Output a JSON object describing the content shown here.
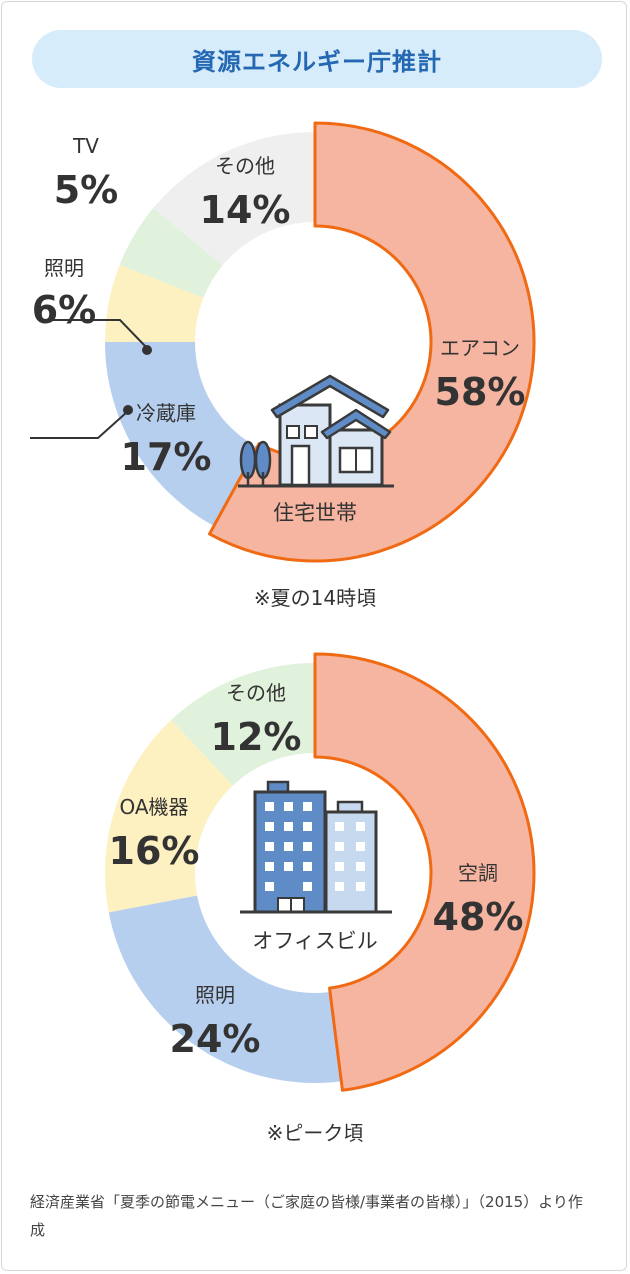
{
  "header": {
    "title": "資源エネルギー庁推計"
  },
  "chart_data": [
    {
      "type": "pie",
      "subtype": "donut",
      "center_label": "住宅世帯",
      "center_icon": "house-icon",
      "note": "※夏の14時頃",
      "start": "top",
      "direction": "clockwise",
      "slices": [
        {
          "label": "エアコン",
          "value": 58,
          "display": "58%",
          "color": "#f6b5a0",
          "highlight": true
        },
        {
          "label": "冷蔵庫",
          "value": 17,
          "display": "17%",
          "color": "#b7cfee"
        },
        {
          "label": "照明",
          "value": 6,
          "display": "6%",
          "color": "#fdf1c2"
        },
        {
          "label": "TV",
          "value": 5,
          "display": "5%",
          "color": "#e0f1dc"
        },
        {
          "label": "その他",
          "value": 14,
          "display": "14%",
          "color": "#efefef"
        }
      ]
    },
    {
      "type": "pie",
      "subtype": "donut",
      "center_label": "オフィスビル",
      "center_icon": "office-building-icon",
      "note": "※ピーク頃",
      "start": "top",
      "direction": "clockwise",
      "slices": [
        {
          "label": "空調",
          "value": 48,
          "display": "48%",
          "color": "#f6b5a0",
          "highlight": true
        },
        {
          "label": "照明",
          "value": 24,
          "display": "24%",
          "color": "#b7cfee"
        },
        {
          "label": "OA機器",
          "value": 16,
          "display": "16%",
          "color": "#fdf1c2"
        },
        {
          "label": "その他",
          "value": 12,
          "display": "12%",
          "color": "#e0f1dc"
        }
      ]
    }
  ],
  "source": "経済産業省「夏季の節電メニュー（ご家庭の皆様/事業者の皆様）」（2015）より作成",
  "colors": {
    "highlight_stroke": "#f06a14",
    "banner_bg": "#d6ecfa",
    "banner_text": "#2468b3"
  }
}
